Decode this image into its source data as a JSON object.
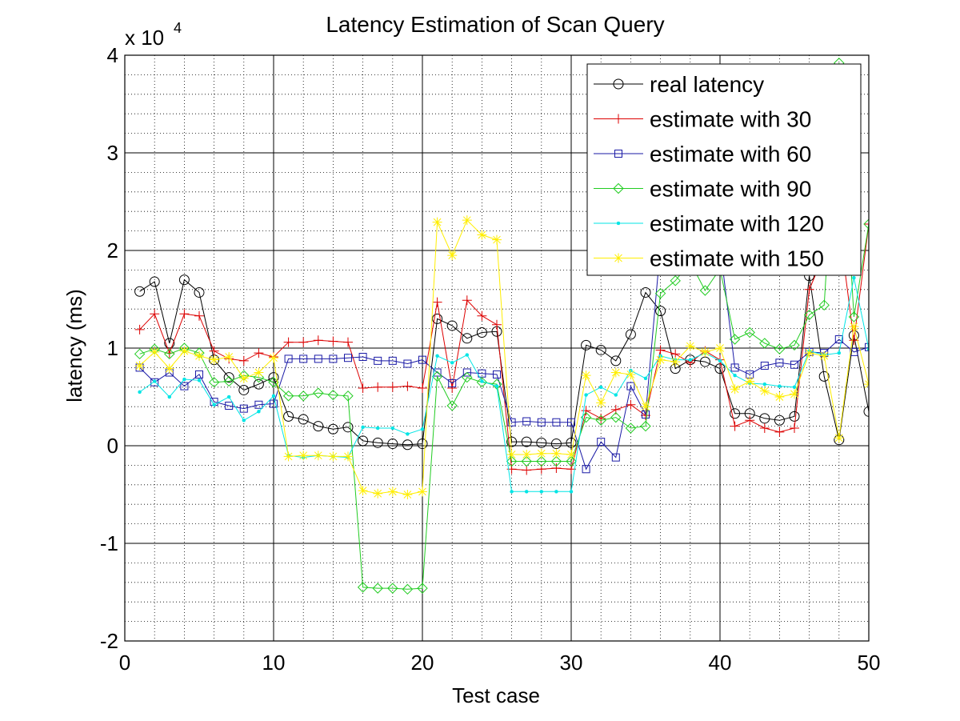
{
  "chart_data": {
    "type": "line",
    "title": "Latency Estimation of Scan Query",
    "xlabel": "Test case",
    "ylabel": "latency (ms)",
    "y_exponent_base": "x 10",
    "y_exponent_power": "4",
    "xlim": [
      0,
      50
    ],
    "ylim": [
      -2,
      4
    ],
    "xticks": [
      0,
      10,
      20,
      30,
      40,
      50
    ],
    "xtick_labels": [
      "0",
      "10",
      "20",
      "30",
      "40",
      "50"
    ],
    "yticks": [
      -2,
      -1,
      0,
      1,
      2,
      3,
      4
    ],
    "ytick_labels": [
      "-2",
      "-1",
      "0",
      "1",
      "2",
      "3",
      "4"
    ],
    "grid": true,
    "minor_grid": true,
    "legend_position": "top-right",
    "x": [
      1,
      2,
      3,
      4,
      5,
      6,
      7,
      8,
      9,
      10,
      11,
      12,
      13,
      14,
      15,
      16,
      17,
      18,
      19,
      20,
      21,
      22,
      23,
      24,
      25,
      26,
      27,
      28,
      29,
      30,
      31,
      32,
      33,
      34,
      35,
      36,
      37,
      38,
      39,
      40,
      41,
      42,
      43,
      44,
      45,
      46,
      47,
      48,
      49,
      50
    ],
    "series": [
      {
        "name": "real latency",
        "color": "#000000",
        "marker": "circle",
        "values": [
          1.58,
          1.68,
          1.05,
          1.7,
          1.57,
          0.88,
          0.7,
          0.57,
          0.63,
          0.7,
          0.3,
          0.27,
          0.2,
          0.17,
          0.19,
          0.05,
          0.03,
          0.02,
          0.01,
          0.02,
          1.3,
          1.23,
          1.1,
          1.16,
          1.17,
          0.04,
          0.04,
          0.03,
          0.02,
          0.03,
          1.03,
          0.98,
          0.87,
          1.14,
          1.57,
          1.38,
          0.79,
          0.88,
          0.86,
          0.79,
          0.33,
          0.33,
          0.28,
          0.26,
          0.3,
          1.74,
          0.71,
          0.06,
          1.13,
          0.35
        ]
      },
      {
        "name": "estimate with 30",
        "color": "#dd0000",
        "marker": "plus",
        "values": [
          1.19,
          1.35,
          0.95,
          1.35,
          1.33,
          0.97,
          0.89,
          0.87,
          0.95,
          0.91,
          1.06,
          1.06,
          1.08,
          1.07,
          1.06,
          0.59,
          0.6,
          0.6,
          0.61,
          0.59,
          1.47,
          0.59,
          1.49,
          1.33,
          1.24,
          -0.24,
          -0.25,
          -0.24,
          -0.23,
          -0.24,
          0.36,
          0.28,
          0.37,
          0.42,
          0.31,
          0.98,
          0.94,
          0.85,
          0.97,
          0.88,
          0.2,
          0.26,
          0.18,
          0.14,
          0.18,
          1.6,
          1.96,
          2.26,
          1.08,
          2.27
        ]
      },
      {
        "name": "estimate with 60",
        "color": "#1a1aa6",
        "marker": "square",
        "values": [
          0.8,
          0.65,
          0.75,
          0.61,
          0.73,
          0.45,
          0.41,
          0.38,
          0.42,
          0.43,
          0.89,
          0.89,
          0.89,
          0.89,
          0.9,
          0.91,
          0.87,
          0.87,
          0.84,
          0.88,
          0.75,
          0.64,
          0.75,
          0.74,
          0.73,
          0.24,
          0.25,
          0.24,
          0.24,
          0.24,
          -0.24,
          0.04,
          -0.12,
          0.61,
          0.32,
          2.05,
          2.05,
          2.05,
          2.05,
          2.05,
          0.8,
          0.73,
          0.82,
          0.85,
          0.83,
          0.96,
          0.95,
          1.09,
          0.96,
          1.01
        ]
      },
      {
        "name": "estimate with 90",
        "color": "#22cc22",
        "marker": "diamond",
        "values": [
          0.94,
          0.99,
          0.94,
          1.0,
          0.95,
          0.65,
          0.66,
          0.72,
          0.7,
          0.65,
          0.51,
          0.51,
          0.54,
          0.52,
          0.51,
          -1.45,
          -1.46,
          -1.46,
          -1.47,
          -1.46,
          0.71,
          0.41,
          0.7,
          0.65,
          0.63,
          -0.16,
          -0.16,
          -0.16,
          -0.16,
          -0.16,
          0.29,
          0.26,
          0.29,
          0.18,
          0.2,
          1.56,
          1.69,
          1.88,
          1.59,
          1.81,
          1.09,
          1.16,
          1.05,
          0.99,
          1.03,
          1.34,
          1.44,
          3.92,
          1.32,
          2.27
        ]
      },
      {
        "name": "estimate with 120",
        "color": "#00e5e5",
        "marker": "dot",
        "values": [
          0.55,
          0.66,
          0.5,
          0.68,
          0.67,
          0.42,
          0.5,
          0.26,
          0.35,
          0.51,
          -0.1,
          -0.12,
          -0.1,
          -0.11,
          -0.12,
          0.19,
          0.18,
          0.18,
          0.12,
          0.17,
          0.92,
          0.85,
          0.93,
          0.66,
          0.61,
          -0.47,
          -0.47,
          -0.47,
          -0.47,
          -0.47,
          0.52,
          0.6,
          0.52,
          0.77,
          0.69,
          0.92,
          0.88,
          0.88,
          0.95,
          0.87,
          0.72,
          0.64,
          0.63,
          0.61,
          0.6,
          0.97,
          0.93,
          0.95,
          1.72,
          0.99
        ]
      },
      {
        "name": "estimate with 150",
        "color": "#ffee00",
        "marker": "star",
        "values": [
          0.82,
          0.96,
          0.79,
          0.97,
          0.92,
          0.88,
          0.91,
          0.69,
          0.75,
          0.9,
          -0.11,
          -0.1,
          -0.1,
          -0.11,
          -0.11,
          -0.46,
          -0.49,
          -0.47,
          -0.5,
          -0.47,
          2.29,
          1.95,
          2.31,
          2.16,
          2.11,
          -0.09,
          -0.09,
          -0.08,
          -0.08,
          -0.09,
          0.72,
          0.44,
          0.75,
          0.73,
          0.4,
          0.88,
          0.86,
          1.02,
          0.96,
          1.0,
          0.58,
          0.66,
          0.56,
          0.5,
          0.53,
          0.95,
          0.92,
          0.08,
          1.22,
          0.63
        ]
      }
    ]
  }
}
